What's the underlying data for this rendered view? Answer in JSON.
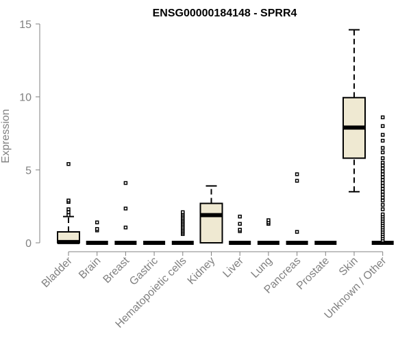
{
  "chart_data": {
    "type": "boxplot",
    "title": "ENSG00000184148 - SPRR4",
    "ylabel": "Expression",
    "xlabel": "",
    "ylim": [
      0,
      15
    ],
    "yticks": [
      0,
      5,
      10,
      15
    ],
    "box_color": "#efe9d2",
    "categories": [
      "Bladder",
      "Brain",
      "Breast",
      "Gastric",
      "Hematopoietic cells",
      "Kidney",
      "Liver",
      "Lung",
      "Pancreas",
      "Prostate",
      "Skin",
      "Unknown / Other"
    ],
    "boxes": [
      {
        "q1": 0,
        "median": 0.05,
        "q3": 0.75,
        "whisker_low": 0,
        "whisker_high": 1.8,
        "outliers": [
          1.9,
          2.1,
          2.3,
          2.8,
          2.9,
          5.4
        ]
      },
      {
        "q1": 0,
        "median": 0,
        "q3": 0,
        "whisker_low": 0,
        "whisker_high": 0,
        "outliers": [
          0.85,
          0.95,
          1.4
        ]
      },
      {
        "q1": 0,
        "median": 0,
        "q3": 0,
        "whisker_low": 0,
        "whisker_high": 0,
        "outliers": [
          1.05,
          2.35,
          4.1
        ]
      },
      {
        "q1": 0,
        "median": 0,
        "q3": 0,
        "whisker_low": 0,
        "whisker_high": 0,
        "outliers": []
      },
      {
        "q1": 0,
        "median": 0,
        "q3": 0,
        "whisker_low": 0,
        "whisker_high": 0,
        "outliers": [
          0.6,
          0.7,
          0.8,
          0.9,
          1.0,
          1.1,
          1.2,
          1.3,
          1.4,
          1.5,
          1.6,
          1.7,
          1.8,
          1.9,
          2.0,
          2.1
        ]
      },
      {
        "q1": 0,
        "median": 1.9,
        "q3": 2.7,
        "whisker_low": 0,
        "whisker_high": 3.9,
        "outliers": []
      },
      {
        "q1": 0,
        "median": 0,
        "q3": 0,
        "whisker_low": 0,
        "whisker_high": 0,
        "outliers": [
          0.8,
          0.9,
          1.3,
          1.8
        ]
      },
      {
        "q1": 0,
        "median": 0,
        "q3": 0,
        "whisker_low": 0,
        "whisker_high": 0,
        "outliers": [
          1.3,
          1.4,
          1.55
        ]
      },
      {
        "q1": 0,
        "median": 0,
        "q3": 0,
        "whisker_low": 0,
        "whisker_high": 0,
        "outliers": [
          0.75,
          4.25,
          4.7
        ]
      },
      {
        "q1": 0,
        "median": 0,
        "q3": 0,
        "whisker_low": 0,
        "whisker_high": 0,
        "outliers": []
      },
      {
        "q1": 5.8,
        "median": 7.9,
        "q3": 9.95,
        "whisker_low": 3.5,
        "whisker_high": 14.6,
        "outliers": []
      },
      {
        "q1": 0,
        "median": 0,
        "q3": 0,
        "whisker_low": 0,
        "whisker_high": 0,
        "outliers": [
          0.15,
          0.3,
          0.45,
          0.6,
          0.75,
          0.9,
          1.05,
          1.2,
          1.35,
          1.5,
          1.65,
          1.8,
          1.95,
          2.3,
          2.6,
          2.9,
          3.1,
          3.3,
          3.5,
          3.7,
          3.9,
          4.1,
          4.3,
          4.5,
          4.7,
          4.9,
          5.1,
          5.3,
          5.5,
          5.8,
          6.2,
          6.5,
          7.0,
          7.4,
          8.0,
          8.6
        ]
      }
    ]
  }
}
